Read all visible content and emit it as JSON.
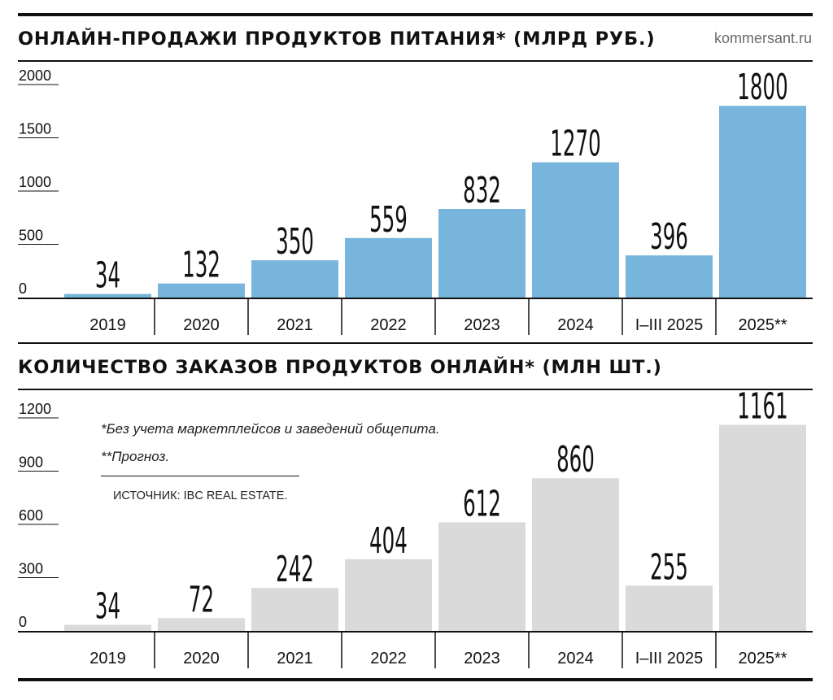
{
  "site_label": "kommersant.ru",
  "footnotes": {
    "note1": "*Без учета маркетплейсов и заведений общепита.",
    "note2": "**Прогноз.",
    "source": "ИСТОЧНИК: IBC REAL ESTATE."
  },
  "colors": {
    "sales_bar": "#78b5dc",
    "orders_bar": "#dadada",
    "rule": "#111111"
  },
  "chart_data": [
    {
      "type": "bar",
      "title": "ОНЛАЙН-ПРОДАЖИ ПРОДУКТОВ ПИТАНИЯ* (МЛРД РУБ.)",
      "xlabel": "",
      "ylabel": "",
      "categories": [
        "2019",
        "2020",
        "2021",
        "2022",
        "2023",
        "2024",
        "I–III 2025",
        "2025**"
      ],
      "values": [
        34,
        132,
        350,
        559,
        832,
        1270,
        396,
        1800
      ],
      "ylim": [
        0,
        2000
      ],
      "yticks": [
        0,
        500,
        1000,
        1500,
        2000
      ],
      "grid": false,
      "legend": "none"
    },
    {
      "type": "bar",
      "title": "КОЛИЧЕСТВО ЗАКАЗОВ ПРОДУКТОВ ОНЛАЙН* (МЛН ШТ.)",
      "xlabel": "",
      "ylabel": "",
      "categories": [
        "2019",
        "2020",
        "2021",
        "2022",
        "2023",
        "2024",
        "I–III 2025",
        "2025**"
      ],
      "values": [
        34,
        72,
        242,
        404,
        612,
        860,
        255,
        1161
      ],
      "ylim": [
        0,
        1200
      ],
      "yticks": [
        0,
        300,
        600,
        900,
        1200
      ],
      "grid": false,
      "legend": "none"
    }
  ]
}
